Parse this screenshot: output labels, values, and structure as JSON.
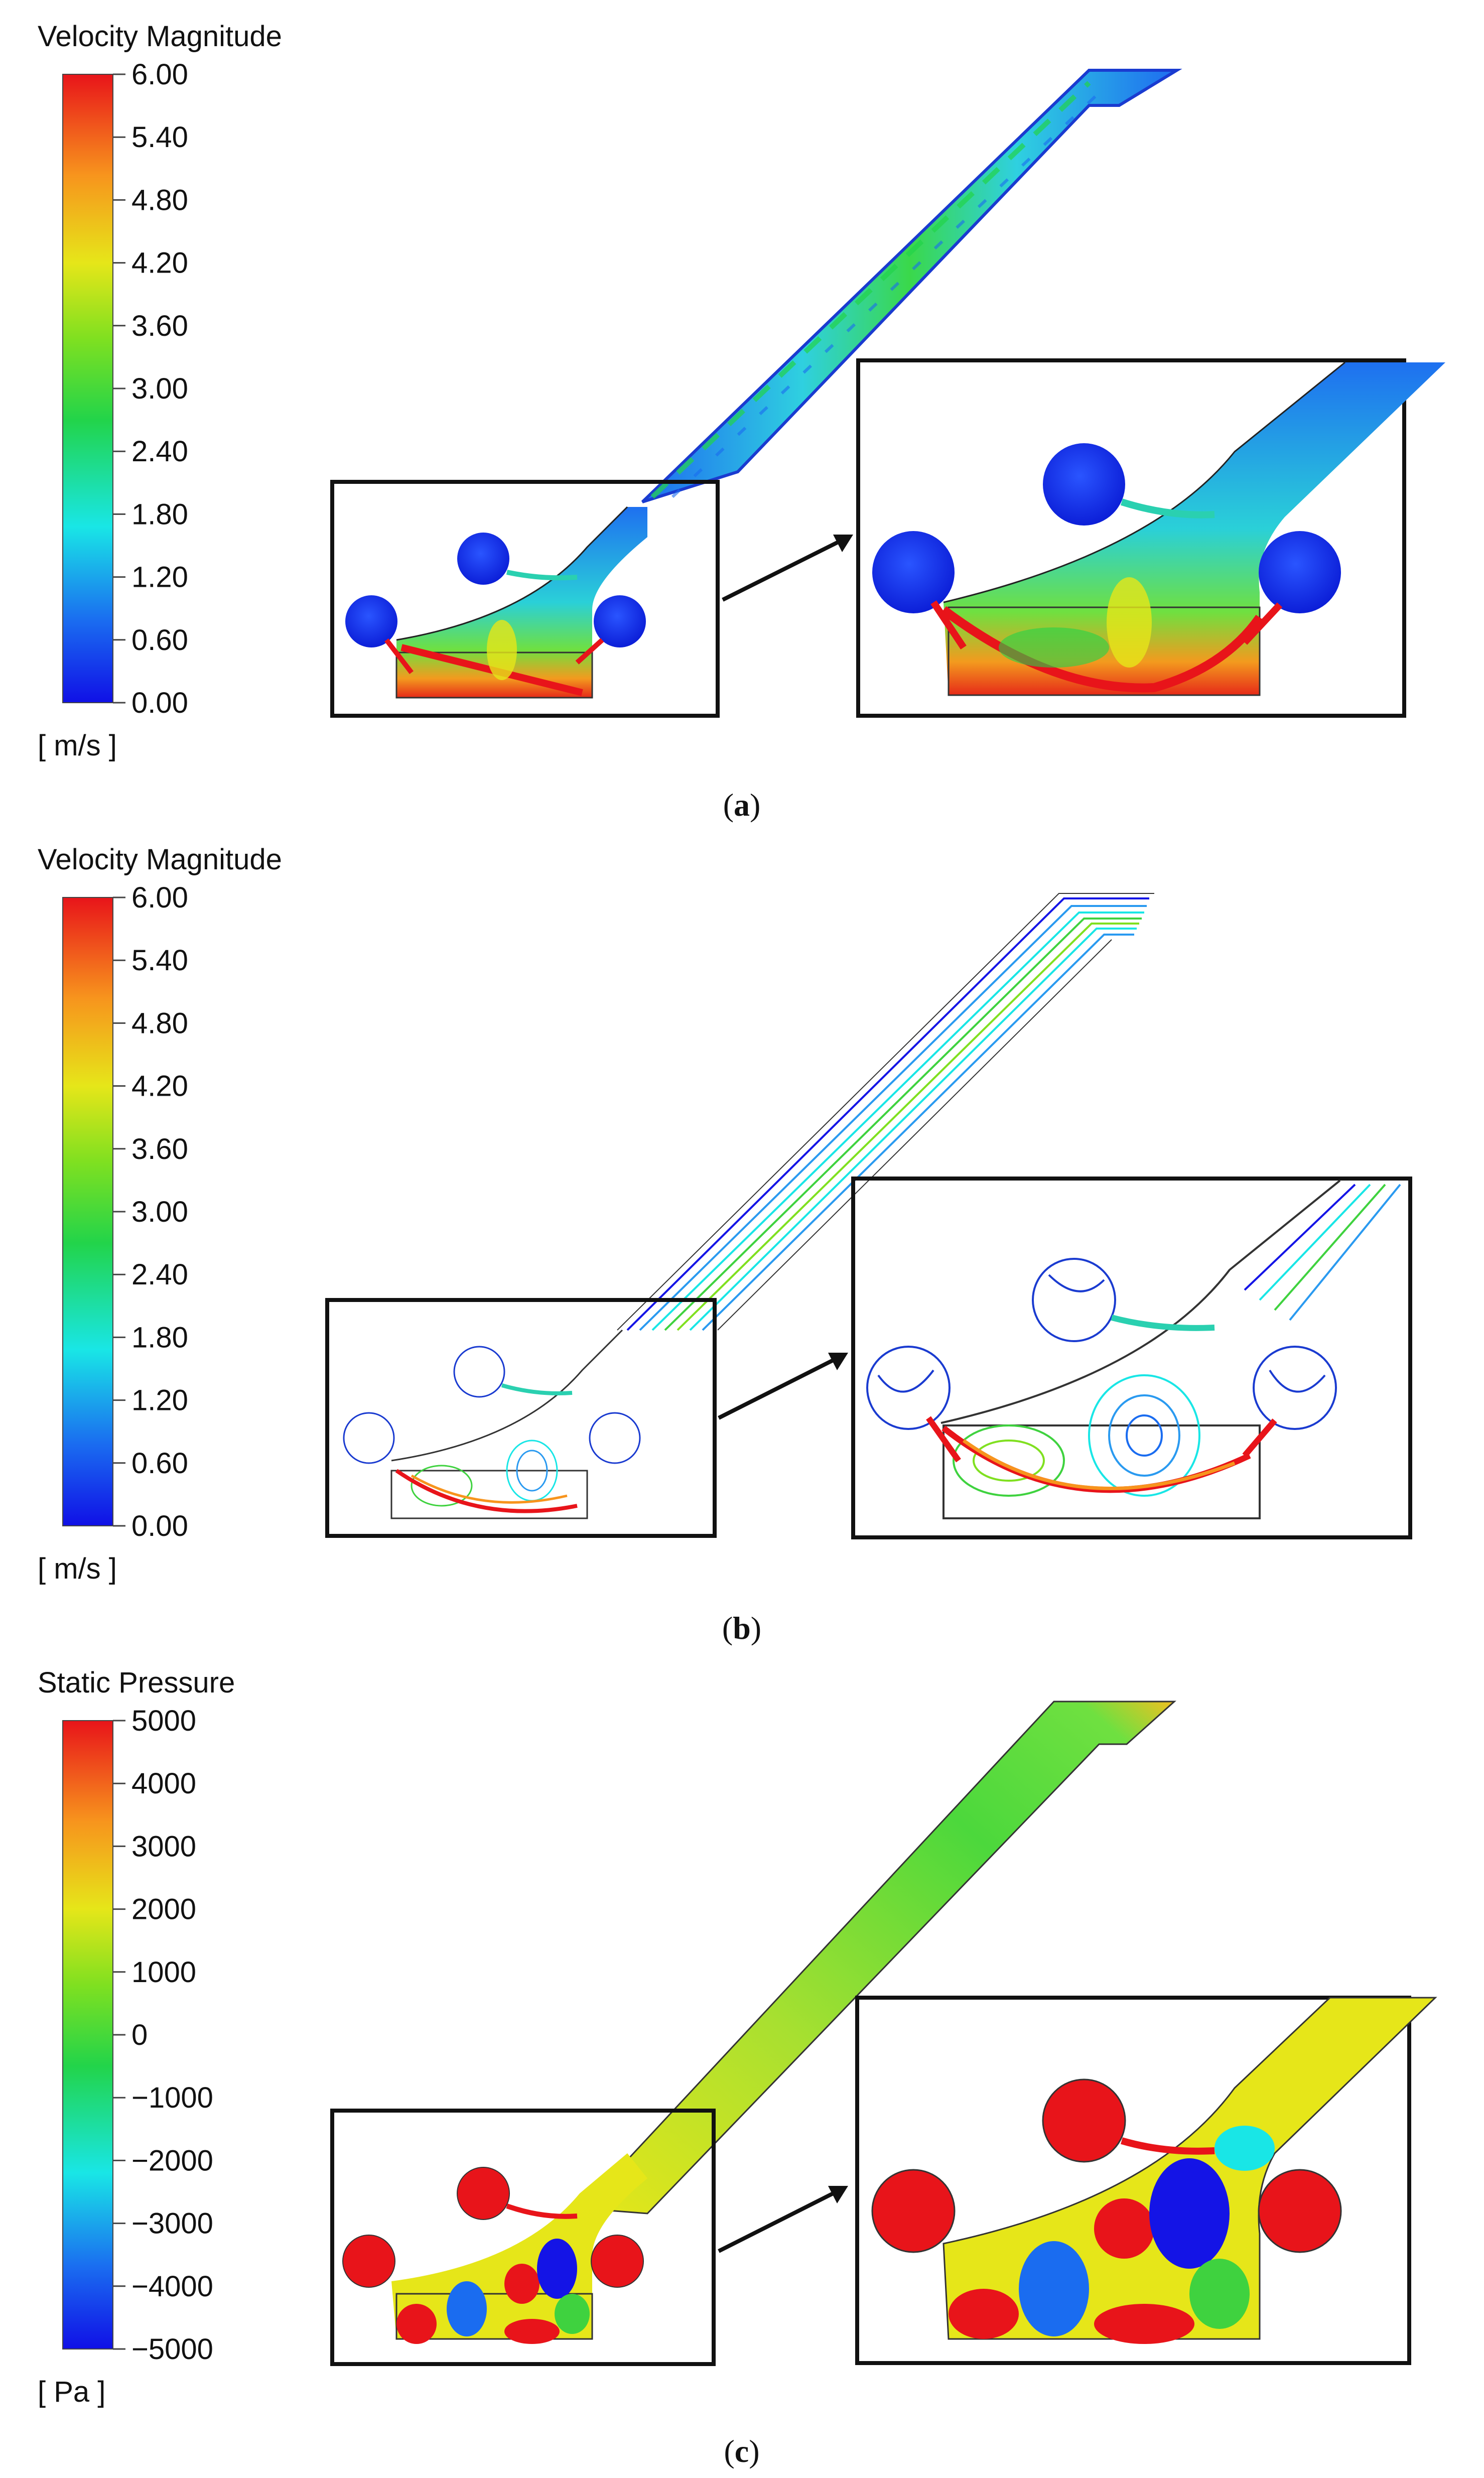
{
  "panels": [
    {
      "id": "a",
      "colorbar": {
        "title": "Velocity Magnitude",
        "unit": "[ m/s ]",
        "ticks": [
          "6.00",
          "5.40",
          "4.80",
          "4.20",
          "3.60",
          "3.00",
          "2.40",
          "1.80",
          "1.20",
          "0.60",
          "0.00"
        ]
      },
      "sublabel": "a",
      "field": "velocity-contour"
    },
    {
      "id": "b",
      "colorbar": {
        "title": "Velocity Magnitude",
        "unit": "[ m/s ]",
        "ticks": [
          "6.00",
          "5.40",
          "4.80",
          "4.20",
          "3.60",
          "3.00",
          "2.40",
          "1.80",
          "1.20",
          "0.60",
          "0.00"
        ]
      },
      "sublabel": "b",
      "field": "velocity-streamlines"
    },
    {
      "id": "c",
      "colorbar": {
        "title": "Static Pressure",
        "unit": "[ Pa ]",
        "ticks": [
          "5000",
          "4000",
          "3000",
          "2000",
          "1000",
          "0",
          "−1000",
          "−2000",
          "−3000",
          "−4000",
          "−5000"
        ]
      },
      "sublabel": "c",
      "field": "pressure-contour"
    }
  ],
  "colors": {
    "jet_red": "#e8141a",
    "jet_orange": "#f7941d",
    "jet_yellow": "#e6e619",
    "jet_green": "#3fd23f",
    "jet_cyan": "#19e6e6",
    "jet_blue": "#1414e6"
  }
}
